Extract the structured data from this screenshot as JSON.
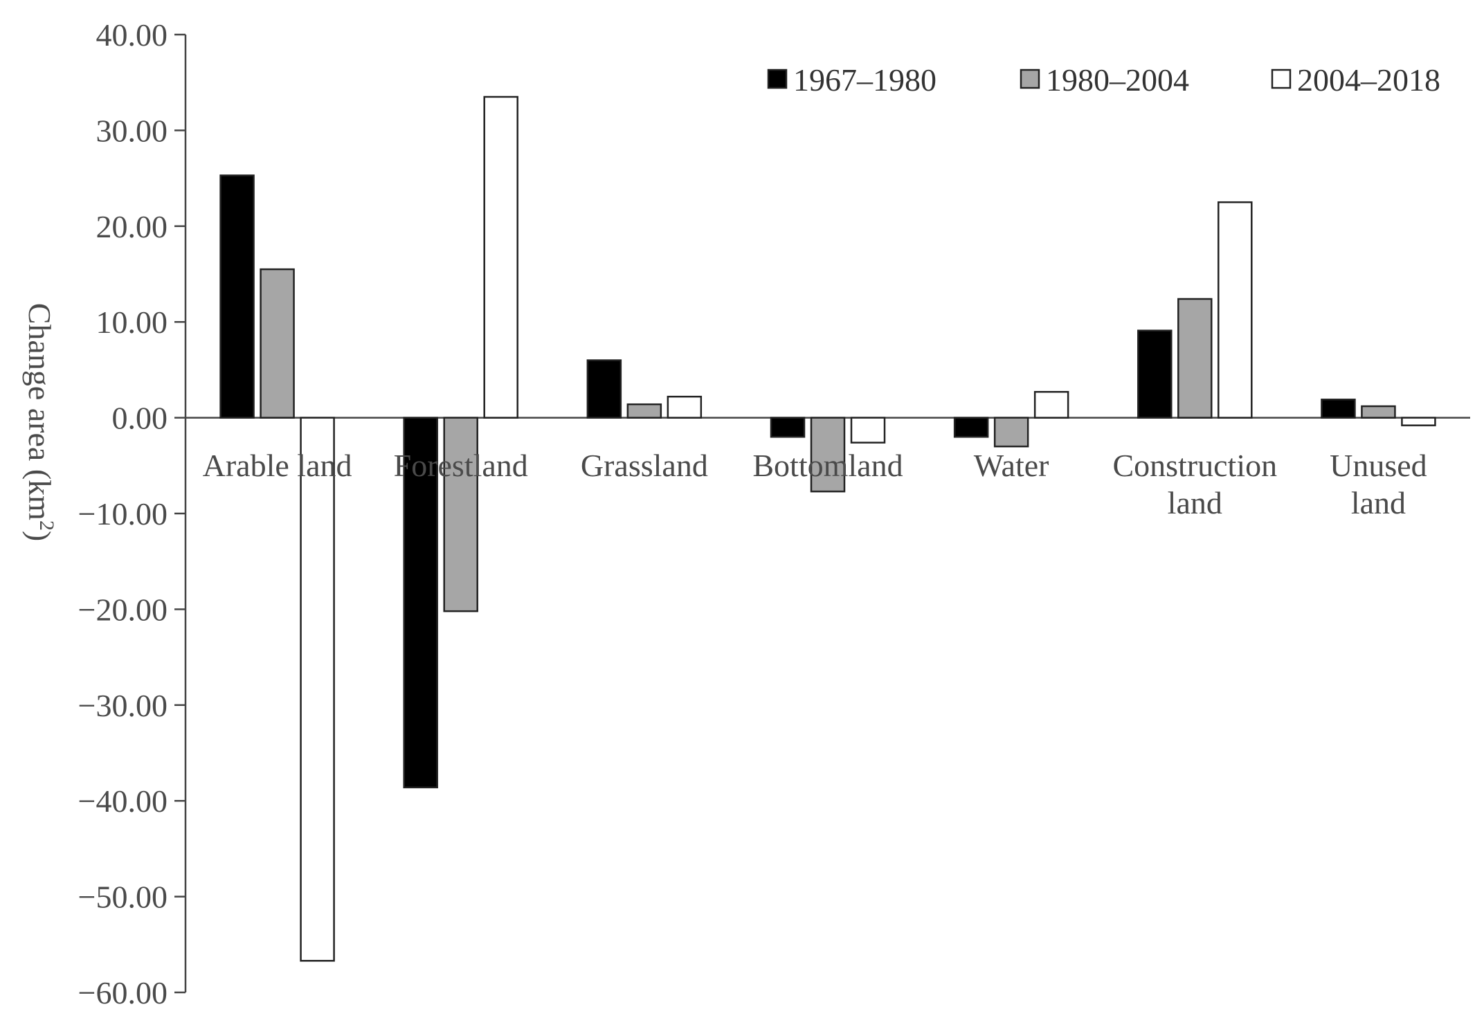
{
  "chart_data": {
    "type": "bar",
    "title": "",
    "xlabel": "",
    "ylabel": "Change area (km",
    "ylabel_sup": "2",
    "ylabel_close": ")",
    "ylim": [
      -60,
      40
    ],
    "yticks": [
      40,
      30,
      20,
      10,
      0,
      -10,
      -20,
      -30,
      -40,
      -50,
      -60
    ],
    "ytick_labels": [
      "40.00",
      "30.00",
      "20.00",
      "10.00",
      "0.00",
      "−10.00",
      "−20.00",
      "−30.00",
      "−40.00",
      "−50.00",
      "−60.00"
    ],
    "grid": false,
    "legend_position": "top-right",
    "categories": [
      [
        "Arable land"
      ],
      [
        "Forestland"
      ],
      [
        "Grassland"
      ],
      [
        "Bottomland"
      ],
      [
        "Water"
      ],
      [
        "Construction",
        "land"
      ],
      [
        "Unused",
        "land"
      ]
    ],
    "series": [
      {
        "name": "1967–1980",
        "color": "#000000",
        "values": [
          25.3,
          -38.6,
          6.0,
          -2.0,
          -2.0,
          9.1,
          1.9
        ]
      },
      {
        "name": "1980–2004",
        "color": "#a6a6a6",
        "values": [
          15.5,
          -20.2,
          1.4,
          -7.7,
          -3.0,
          12.4,
          1.2
        ]
      },
      {
        "name": "2004–2018",
        "color": "#ffffff",
        "values": [
          -56.7,
          33.5,
          2.2,
          -2.6,
          2.7,
          22.5,
          -0.8
        ]
      }
    ]
  }
}
